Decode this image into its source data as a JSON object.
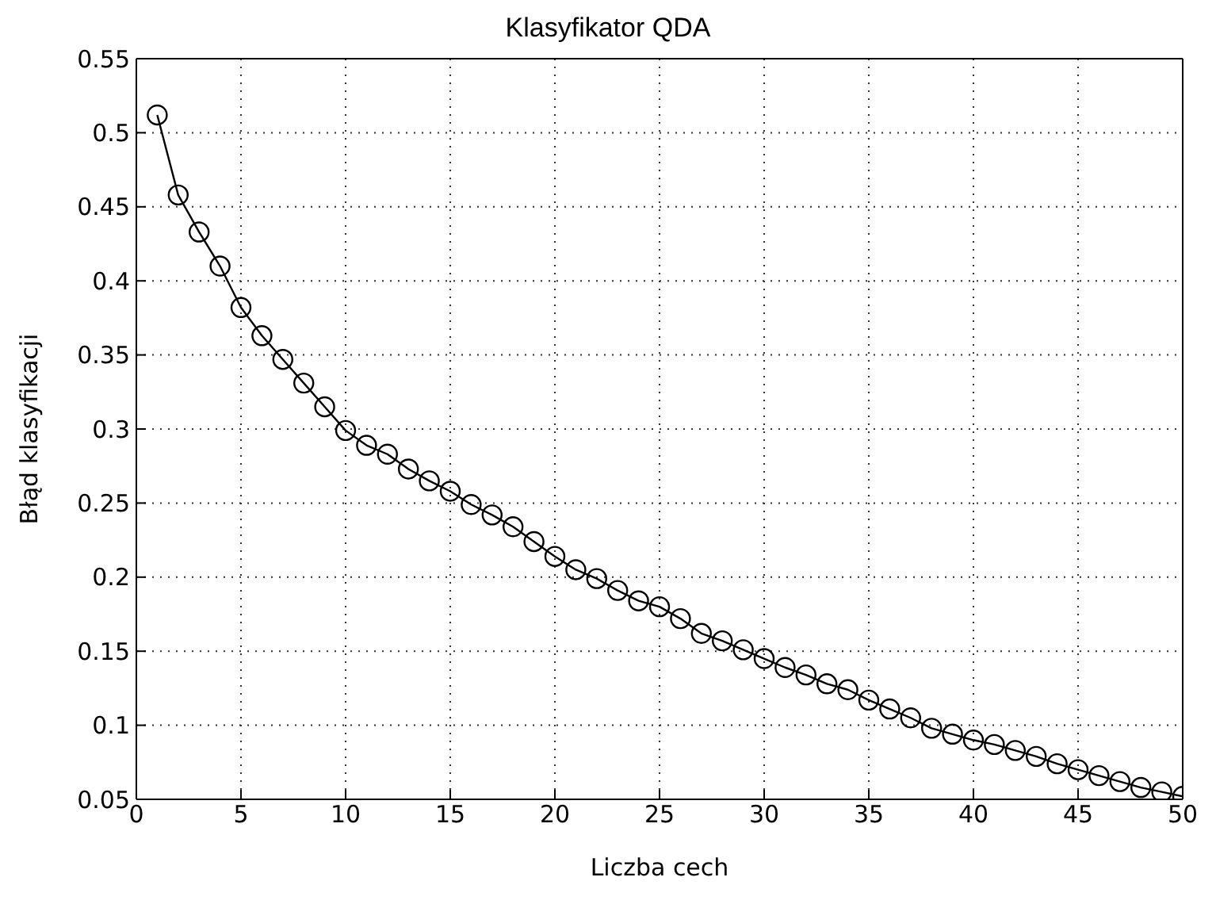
{
  "chart_data": {
    "type": "line",
    "title": "Klasyfikator QDA",
    "xlabel": "Liczba cech",
    "ylabel": "Błąd klasyfikacji",
    "x": [
      1,
      2,
      3,
      4,
      5,
      6,
      7,
      8,
      9,
      10,
      11,
      12,
      13,
      14,
      15,
      16,
      17,
      18,
      19,
      20,
      21,
      22,
      23,
      24,
      25,
      26,
      27,
      28,
      29,
      30,
      31,
      32,
      33,
      34,
      35,
      36,
      37,
      38,
      39,
      40,
      41,
      42,
      43,
      44,
      45,
      46,
      47,
      48,
      49,
      50
    ],
    "series": [
      {
        "color": "#000000",
        "values": [
          0.512,
          0.458,
          0.433,
          0.41,
          0.382,
          0.363,
          0.347,
          0.331,
          0.315,
          0.299,
          0.289,
          0.283,
          0.273,
          0.265,
          0.258,
          0.249,
          0.242,
          0.234,
          0.224,
          0.214,
          0.205,
          0.199,
          0.191,
          0.184,
          0.18,
          0.172,
          0.162,
          0.157,
          0.151,
          0.145,
          0.139,
          0.134,
          0.128,
          0.124,
          0.117,
          0.111,
          0.105,
          0.098,
          0.094,
          0.09,
          0.087,
          0.083,
          0.079,
          0.074,
          0.07,
          0.066,
          0.062,
          0.058,
          0.055,
          0.052
        ]
      }
    ],
    "xlim": [
      0,
      50
    ],
    "xticks": [
      0,
      5,
      10,
      15,
      20,
      25,
      30,
      35,
      40,
      45,
      50
    ],
    "ylim": [
      0.05,
      0.55
    ],
    "yticks": [
      0.05,
      0.1,
      0.15,
      0.2,
      0.25,
      0.3,
      0.35,
      0.4,
      0.45,
      0.5,
      0.55
    ],
    "grid": true,
    "marker": "circle",
    "line_style": "solid"
  }
}
